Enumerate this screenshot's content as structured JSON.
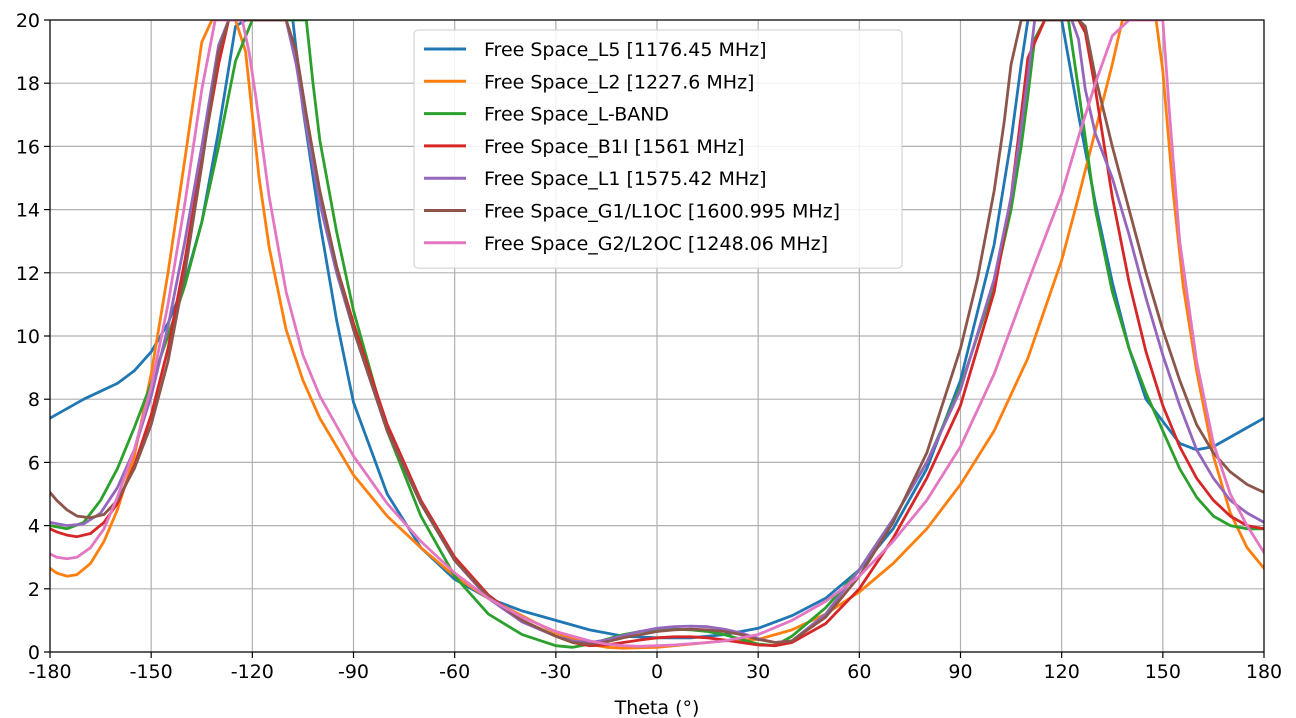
{
  "chart_data": {
    "type": "line",
    "title": "",
    "xlabel": "Theta (°)",
    "ylabel": "",
    "xlim": [
      -180,
      180
    ],
    "ylim": [
      0,
      20
    ],
    "xticks": [
      -180,
      -150,
      -120,
      -90,
      -60,
      -30,
      0,
      30,
      60,
      90,
      120,
      150,
      180
    ],
    "yticks": [
      0,
      2,
      4,
      6,
      8,
      10,
      12,
      14,
      16,
      18,
      20
    ],
    "grid": true,
    "legend_position": "top-center",
    "series": [
      {
        "name": "Free Space_L5 [1176.45 MHz]",
        "color": "#1f77b4",
        "x": [
          -180,
          -170,
          -160,
          -155,
          -150,
          -145,
          -140,
          -135,
          -130,
          -125,
          -122,
          -118,
          -115,
          -112,
          -110,
          -108,
          -105,
          -100,
          -95,
          -90,
          -80,
          -70,
          -60,
          -50,
          -40,
          -30,
          -20,
          -10,
          0,
          10,
          20,
          30,
          40,
          50,
          60,
          70,
          80,
          90,
          100,
          105,
          108,
          110,
          112,
          115,
          118,
          120,
          125,
          130,
          135,
          140,
          145,
          150,
          155,
          160,
          165,
          170,
          175,
          180
        ],
        "y": [
          7.4,
          8.0,
          8.5,
          8.9,
          9.5,
          10.4,
          11.7,
          13.6,
          16.5,
          19.8,
          20,
          20,
          20,
          20,
          20,
          20,
          17.2,
          13.6,
          10.5,
          7.9,
          5.0,
          3.3,
          2.3,
          1.7,
          1.3,
          1.0,
          0.7,
          0.5,
          0.45,
          0.45,
          0.55,
          0.75,
          1.15,
          1.7,
          2.6,
          3.9,
          5.8,
          8.6,
          12.9,
          16.2,
          18.6,
          20,
          20,
          20,
          20,
          20,
          17.0,
          14.2,
          11.7,
          9.6,
          8.0,
          7.3,
          6.6,
          6.4,
          6.5,
          6.8,
          7.1,
          7.4
        ]
      },
      {
        "name": "Free Space_L2 [1227.6 MHz]",
        "color": "#ff7f0e",
        "x": [
          -180,
          -178,
          -175,
          -172,
          -168,
          -164,
          -160,
          -155,
          -150,
          -145,
          -140,
          -135,
          -132,
          -130,
          -128,
          -125,
          -122,
          -120,
          -118,
          -115,
          -110,
          -105,
          -100,
          -90,
          -80,
          -70,
          -60,
          -50,
          -40,
          -30,
          -20,
          -15,
          -10,
          0,
          5,
          10,
          15,
          20,
          25,
          30,
          40,
          50,
          60,
          70,
          80,
          90,
          100,
          110,
          120,
          125,
          130,
          135,
          138,
          140,
          142,
          144,
          146,
          148,
          150,
          153,
          156,
          160,
          165,
          170,
          175,
          180
        ],
        "y": [
          2.65,
          2.5,
          2.4,
          2.45,
          2.8,
          3.5,
          4.5,
          6.2,
          8.8,
          12.0,
          15.6,
          19.3,
          20,
          20,
          20,
          20,
          19.0,
          17.0,
          15.0,
          12.8,
          10.2,
          8.6,
          7.4,
          5.6,
          4.3,
          3.3,
          2.4,
          1.7,
          1.15,
          0.6,
          0.25,
          0.15,
          0.12,
          0.15,
          0.2,
          0.25,
          0.3,
          0.35,
          0.38,
          0.4,
          0.7,
          1.2,
          1.9,
          2.8,
          3.9,
          5.3,
          7.0,
          9.3,
          12.4,
          14.4,
          16.5,
          18.6,
          20,
          20,
          20,
          20,
          20,
          20,
          18.4,
          14.6,
          11.6,
          8.9,
          6.2,
          4.4,
          3.3,
          2.65
        ]
      },
      {
        "name": "Free Space_L-BAND",
        "color": "#2ca02c",
        "x": [
          -180,
          -175,
          -170,
          -165,
          -160,
          -155,
          -150,
          -145,
          -140,
          -135,
          -130,
          -125,
          -120,
          -118,
          -115,
          -112,
          -110,
          -108,
          -106,
          -104,
          -102,
          -100,
          -95,
          -90,
          -80,
          -70,
          -60,
          -50,
          -40,
          -30,
          -25,
          -20,
          -15,
          -10,
          -5,
          0,
          5,
          10,
          15,
          20,
          25,
          30,
          35,
          40,
          50,
          60,
          70,
          80,
          90,
          100,
          105,
          108,
          110,
          112,
          115,
          118,
          120,
          122,
          125,
          130,
          135,
          140,
          145,
          150,
          155,
          160,
          165,
          170,
          175,
          180
        ],
        "y": [
          4.0,
          3.9,
          4.1,
          4.8,
          5.8,
          7.1,
          8.5,
          10.0,
          11.6,
          13.6,
          16.0,
          18.7,
          20,
          20,
          20,
          20,
          20,
          20,
          20,
          20,
          18.0,
          16.2,
          13.3,
          10.8,
          7.0,
          4.3,
          2.4,
          1.2,
          0.55,
          0.2,
          0.15,
          0.25,
          0.4,
          0.55,
          0.65,
          0.7,
          0.72,
          0.7,
          0.65,
          0.55,
          0.4,
          0.25,
          0.2,
          0.5,
          1.4,
          2.6,
          4.2,
          6.0,
          8.4,
          11.6,
          14.0,
          16.0,
          17.6,
          19.4,
          20,
          20,
          20,
          20,
          17.8,
          14.0,
          11.4,
          9.6,
          8.2,
          7.0,
          5.8,
          4.9,
          4.3,
          4.0,
          3.9,
          3.9
        ]
      },
      {
        "name": "Free Space_B1I [1561 MHz]",
        "color": "#d62728",
        "x": [
          -180,
          -178,
          -175,
          -172,
          -168,
          -164,
          -160,
          -155,
          -150,
          -145,
          -140,
          -135,
          -130,
          -127,
          -125,
          -123,
          -121,
          -119,
          -117,
          -115,
          -112,
          -110,
          -107,
          -104,
          -100,
          -95,
          -90,
          -80,
          -70,
          -60,
          -50,
          -40,
          -30,
          -25,
          -20,
          -15,
          -10,
          -5,
          0,
          5,
          10,
          15,
          20,
          25,
          30,
          35,
          40,
          50,
          60,
          70,
          80,
          90,
          100,
          105,
          108,
          110,
          115,
          120,
          123,
          125,
          127,
          130,
          135,
          140,
          145,
          150,
          155,
          160,
          165,
          170,
          175,
          180
        ],
        "y": [
          3.9,
          3.8,
          3.7,
          3.65,
          3.75,
          4.1,
          4.7,
          5.9,
          7.5,
          9.6,
          12.4,
          15.6,
          18.6,
          20,
          20,
          20,
          20,
          20,
          20,
          20,
          20,
          20,
          19.0,
          17.0,
          14.5,
          12.2,
          10.4,
          7.2,
          4.8,
          3.0,
          1.8,
          1.0,
          0.5,
          0.3,
          0.2,
          0.22,
          0.3,
          0.38,
          0.45,
          0.48,
          0.48,
          0.45,
          0.38,
          0.3,
          0.22,
          0.2,
          0.3,
          0.9,
          2.0,
          3.6,
          5.5,
          7.8,
          11.4,
          14.4,
          17.0,
          18.8,
          20,
          20,
          20,
          20,
          19.6,
          17.8,
          14.4,
          11.7,
          9.5,
          7.8,
          6.5,
          5.5,
          4.8,
          4.3,
          4.0,
          3.9
        ]
      },
      {
        "name": "Free Space_L1 [1575.42 MHz]",
        "color": "#9467bd",
        "x": [
          -180,
          -175,
          -170,
          -165,
          -160,
          -155,
          -150,
          -145,
          -140,
          -135,
          -130,
          -127,
          -125,
          -122,
          -120,
          -118,
          -115,
          -112,
          -110,
          -107,
          -104,
          -100,
          -95,
          -90,
          -80,
          -70,
          -60,
          -50,
          -40,
          -30,
          -25,
          -20,
          -15,
          -10,
          -5,
          0,
          5,
          10,
          15,
          20,
          25,
          30,
          35,
          40,
          50,
          60,
          70,
          80,
          90,
          100,
          105,
          108,
          110,
          112,
          115,
          118,
          120,
          123,
          125,
          127,
          130,
          135,
          140,
          145,
          150,
          155,
          160,
          165,
          170,
          175,
          180
        ],
        "y": [
          4.1,
          4.0,
          4.05,
          4.4,
          5.2,
          6.4,
          8.1,
          10.3,
          13.0,
          16.0,
          19.2,
          20,
          20,
          20,
          20,
          20,
          20,
          20,
          20,
          18.6,
          16.6,
          14.2,
          12.0,
          10.2,
          7.0,
          4.7,
          2.9,
          1.7,
          0.95,
          0.5,
          0.35,
          0.3,
          0.38,
          0.52,
          0.65,
          0.75,
          0.8,
          0.82,
          0.8,
          0.72,
          0.6,
          0.42,
          0.3,
          0.35,
          1.2,
          2.6,
          4.2,
          6.0,
          8.3,
          11.8,
          14.4,
          16.6,
          18.2,
          20,
          20,
          20,
          20,
          20,
          19.4,
          17.8,
          16.4,
          15.0,
          13.2,
          11.2,
          9.4,
          7.8,
          6.4,
          5.5,
          4.8,
          4.4,
          4.1
        ]
      },
      {
        "name": "Free Space_G1/L1OC [1600.995 MHz]",
        "color": "#8c564b",
        "x": [
          -180,
          -178,
          -175,
          -172,
          -168,
          -164,
          -160,
          -155,
          -150,
          -145,
          -140,
          -135,
          -130,
          -127,
          -125,
          -123,
          -121,
          -119,
          -117,
          -115,
          -112,
          -110,
          -107,
          -104,
          -100,
          -95,
          -90,
          -80,
          -70,
          -60,
          -50,
          -40,
          -30,
          -25,
          -20,
          -15,
          -10,
          -5,
          0,
          5,
          10,
          15,
          20,
          25,
          30,
          35,
          40,
          50,
          60,
          70,
          80,
          90,
          95,
          100,
          103,
          105,
          108,
          110,
          115,
          120,
          123,
          125,
          127,
          130,
          135,
          140,
          145,
          150,
          155,
          160,
          165,
          170,
          175,
          180
        ],
        "y": [
          5.05,
          4.8,
          4.5,
          4.3,
          4.25,
          4.35,
          4.8,
          5.8,
          7.2,
          9.2,
          12.0,
          15.4,
          19.0,
          20,
          20,
          20,
          20,
          20,
          20,
          20,
          20,
          20,
          19.0,
          17.0,
          14.6,
          12.2,
          10.2,
          7.0,
          4.7,
          2.9,
          1.75,
          1.0,
          0.5,
          0.3,
          0.25,
          0.32,
          0.45,
          0.55,
          0.65,
          0.7,
          0.72,
          0.7,
          0.65,
          0.55,
          0.4,
          0.3,
          0.35,
          1.1,
          2.4,
          4.1,
          6.3,
          9.6,
          11.8,
          14.6,
          16.8,
          18.6,
          20,
          20,
          20,
          20,
          20,
          20,
          19.8,
          18.2,
          16.0,
          14.0,
          12.0,
          10.2,
          8.6,
          7.2,
          6.3,
          5.7,
          5.3,
          5.05
        ]
      },
      {
        "name": "Free Space_G2/L2OC [1248.06 MHz]",
        "color": "#e377c2",
        "x": [
          -180,
          -178,
          -175,
          -172,
          -168,
          -164,
          -160,
          -155,
          -150,
          -145,
          -140,
          -135,
          -131,
          -128,
          -125,
          -123,
          -121,
          -119,
          -117,
          -115,
          -112,
          -110,
          -105,
          -100,
          -90,
          -80,
          -70,
          -60,
          -50,
          -40,
          -30,
          -20,
          -15,
          -10,
          -5,
          0,
          5,
          10,
          15,
          20,
          30,
          40,
          50,
          60,
          70,
          80,
          90,
          100,
          110,
          120,
          125,
          130,
          135,
          140,
          143,
          145,
          147,
          149,
          150,
          152,
          155,
          160,
          165,
          170,
          175,
          180
        ],
        "y": [
          3.1,
          3.0,
          2.95,
          3.0,
          3.3,
          3.9,
          4.9,
          6.4,
          8.4,
          11.0,
          14.2,
          17.8,
          20,
          20,
          20,
          20,
          19.0,
          17.6,
          16.0,
          14.4,
          12.6,
          11.4,
          9.4,
          8.1,
          6.2,
          4.7,
          3.5,
          2.5,
          1.7,
          1.1,
          0.65,
          0.35,
          0.25,
          0.2,
          0.18,
          0.2,
          0.22,
          0.26,
          0.3,
          0.35,
          0.55,
          1.0,
          1.6,
          2.4,
          3.5,
          4.8,
          6.5,
          8.8,
          11.7,
          14.5,
          16.3,
          18.0,
          19.5,
          20,
          20,
          20,
          20,
          20,
          20,
          17.0,
          13.0,
          9.2,
          6.6,
          5.0,
          4.0,
          3.15
        ]
      }
    ]
  }
}
